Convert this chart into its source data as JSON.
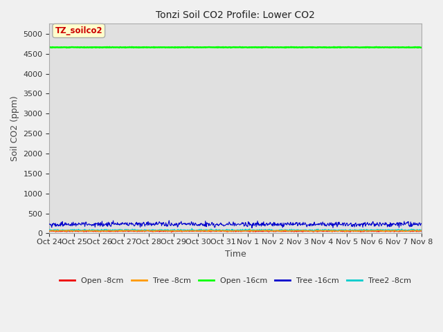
{
  "title": "Tonzi Soil CO2 Profile: Lower CO2",
  "xlabel": "Time",
  "ylabel": "Soil CO2 (ppm)",
  "ylim": [
    0,
    5250
  ],
  "yticks": [
    0,
    500,
    1000,
    1500,
    2000,
    2500,
    3000,
    3500,
    4000,
    4500,
    5000
  ],
  "background_color": "#e0e0e0",
  "fig_background": "#f0f0f0",
  "legend_label": "TZ_soilco2",
  "legend_label_color": "#cc0000",
  "legend_box_color": "#ffffcc",
  "legend_box_edge": "#aaaaaa",
  "series": {
    "open_8cm": {
      "color": "#ee0000",
      "value": 55,
      "noise": 8,
      "label": "Open -8cm"
    },
    "tree_8cm": {
      "color": "#ff9900",
      "value": 65,
      "noise": 8,
      "label": "Tree -8cm"
    },
    "open_16cm": {
      "color": "#00ff00",
      "value": 4660,
      "noise": 3,
      "label": "Open -16cm"
    },
    "tree_16cm": {
      "color": "#0000cc",
      "value": 230,
      "noise": 30,
      "label": "Tree -16cm"
    },
    "tree2_8cm": {
      "color": "#00cccc",
      "value": 85,
      "noise": 10,
      "label": "Tree2 -8cm"
    }
  },
  "n_points": 800,
  "x_start": 0,
  "x_end": 15,
  "xtick_labels": [
    "Oct 24",
    "Oct 25",
    "Oct 26",
    "Oct 27",
    "Oct 28",
    "Oct 29",
    "Oct 30",
    "Oct 31",
    "Nov 1",
    "Nov 2",
    "Nov 3",
    "Nov 4",
    "Nov 5",
    "Nov 6",
    "Nov 7",
    "Nov 8"
  ],
  "xtick_positions": [
    0,
    1,
    2,
    3,
    4,
    5,
    6,
    7,
    8,
    9,
    10,
    11,
    12,
    13,
    14,
    15
  ]
}
